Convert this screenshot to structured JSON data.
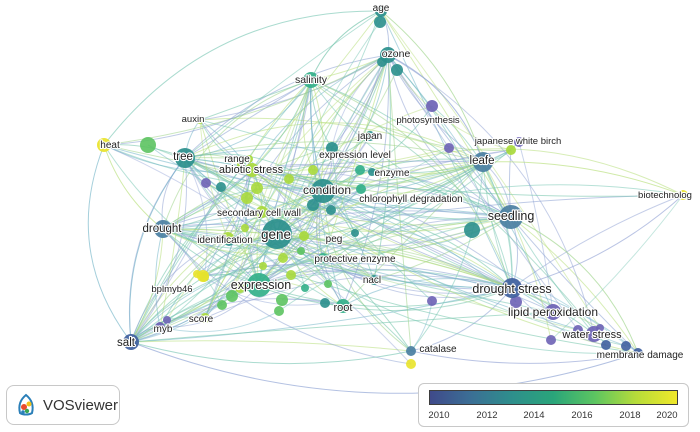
{
  "logo": {
    "text": "VOSviewer",
    "icon": "vosviewer-logo-icon"
  },
  "legend": {
    "ticks": [
      "2010",
      "2012",
      "2014",
      "2016",
      "2018",
      "2020"
    ]
  },
  "nodes": [
    {
      "id": "age",
      "label": "age"
    },
    {
      "id": "ozone",
      "label": "ozone"
    },
    {
      "id": "salinity",
      "label": "salinity"
    },
    {
      "id": "auxin",
      "label": "auxin"
    },
    {
      "id": "photosynthesis",
      "label": "photosynthesis"
    },
    {
      "id": "japanese_white_birch",
      "label": "japanese white birch"
    },
    {
      "id": "heat",
      "label": "heat"
    },
    {
      "id": "tree",
      "label": "tree"
    },
    {
      "id": "range",
      "label": "range"
    },
    {
      "id": "japan",
      "label": "japan"
    },
    {
      "id": "expression_level",
      "label": "expression level"
    },
    {
      "id": "leafe",
      "label": "leafe"
    },
    {
      "id": "enzyme",
      "label": "enzyme"
    },
    {
      "id": "condition",
      "label": "condition"
    },
    {
      "id": "chlorophyll_degradation",
      "label": "chlorophyll degradation"
    },
    {
      "id": "abiotic_stress",
      "label": "abiotic stress"
    },
    {
      "id": "biotechnology",
      "label": "biotechnolog"
    },
    {
      "id": "secondary_cell_wall",
      "label": "secondary cell wall"
    },
    {
      "id": "seedling",
      "label": "seedling"
    },
    {
      "id": "drought",
      "label": "drought"
    },
    {
      "id": "gene",
      "label": "gene"
    },
    {
      "id": "identification",
      "label": "identification"
    },
    {
      "id": "peg",
      "label": "peg"
    },
    {
      "id": "protective_enzyme",
      "label": "protective enzyme"
    },
    {
      "id": "expression",
      "label": "expression"
    },
    {
      "id": "nacl",
      "label": "nacl"
    },
    {
      "id": "drought_stress",
      "label": "drought stress"
    },
    {
      "id": "bplmyb46",
      "label": "bplmyb46"
    },
    {
      "id": "root",
      "label": "root"
    },
    {
      "id": "lipid_peroxidation",
      "label": "lipid peroxidation"
    },
    {
      "id": "score",
      "label": "score"
    },
    {
      "id": "water_stress",
      "label": "water stress"
    },
    {
      "id": "myb",
      "label": "myb"
    },
    {
      "id": "salt",
      "label": "salt"
    },
    {
      "id": "catalase",
      "label": "catalase"
    },
    {
      "id": "membrane_damage",
      "label": "membrane damage"
    }
  ]
}
